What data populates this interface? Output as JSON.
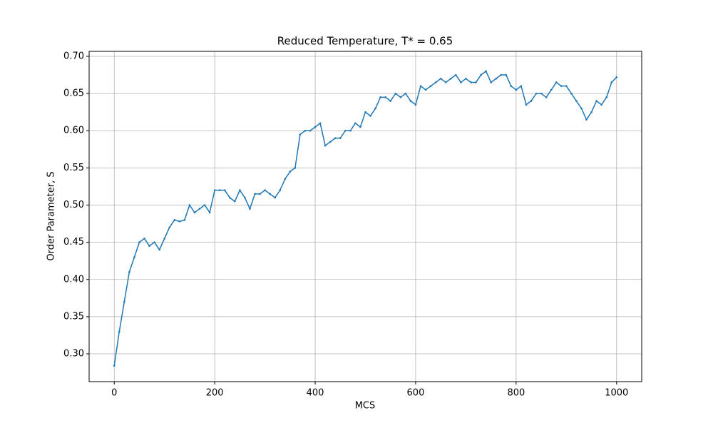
{
  "chart_data": {
    "type": "line",
    "title": "Reduced Temperature, T* = 0.65",
    "xlabel": "MCS",
    "ylabel": "Order Parameter, S",
    "x": [
      0,
      10,
      20,
      30,
      40,
      50,
      60,
      70,
      80,
      90,
      100,
      110,
      120,
      130,
      140,
      150,
      160,
      170,
      180,
      190,
      200,
      210,
      220,
      230,
      240,
      250,
      260,
      270,
      280,
      290,
      300,
      310,
      320,
      330,
      340,
      350,
      360,
      370,
      380,
      390,
      400,
      410,
      420,
      430,
      440,
      450,
      460,
      470,
      480,
      490,
      500,
      510,
      520,
      530,
      540,
      550,
      560,
      570,
      580,
      590,
      600,
      610,
      620,
      630,
      640,
      650,
      660,
      670,
      680,
      690,
      700,
      710,
      720,
      730,
      740,
      750,
      760,
      770,
      780,
      790,
      800,
      810,
      820,
      830,
      840,
      850,
      860,
      870,
      880,
      890,
      900,
      910,
      920,
      930,
      940,
      950,
      960,
      970,
      980,
      990,
      1000
    ],
    "series": [
      {
        "color": "#1f77b4",
        "values": [
          0.284,
          0.33,
          0.37,
          0.41,
          0.43,
          0.45,
          0.455,
          0.445,
          0.45,
          0.44,
          0.455,
          0.47,
          0.48,
          0.478,
          0.48,
          0.5,
          0.49,
          0.495,
          0.5,
          0.49,
          0.52,
          0.52,
          0.52,
          0.51,
          0.505,
          0.52,
          0.51,
          0.495,
          0.515,
          0.515,
          0.52,
          0.515,
          0.51,
          0.52,
          0.535,
          0.545,
          0.55,
          0.595,
          0.6,
          0.6,
          0.605,
          0.61,
          0.58,
          0.585,
          0.59,
          0.59,
          0.6,
          0.6,
          0.61,
          0.605,
          0.625,
          0.62,
          0.63,
          0.645,
          0.645,
          0.64,
          0.65,
          0.645,
          0.65,
          0.64,
          0.635,
          0.66,
          0.655,
          0.66,
          0.665,
          0.67,
          0.665,
          0.67,
          0.675,
          0.665,
          0.67,
          0.665,
          0.665,
          0.675,
          0.68,
          0.665,
          0.67,
          0.675,
          0.675,
          0.66,
          0.655,
          0.66,
          0.635,
          0.64,
          0.65,
          0.65,
          0.645,
          0.655,
          0.665,
          0.66,
          0.66,
          0.65,
          0.64,
          0.63,
          0.615,
          0.625,
          0.64,
          0.635,
          0.645,
          0.665,
          0.672
        ]
      }
    ],
    "xlim": [
      -50,
      1050
    ],
    "ylim": [
      0.2626,
      0.7067
    ],
    "xticks": [
      0,
      200,
      400,
      600,
      800,
      1000
    ],
    "yticks": [
      {
        "value": 0.3,
        "label": "0.30"
      },
      {
        "value": 0.35,
        "label": "0.35"
      },
      {
        "value": 0.4,
        "label": "0.40"
      },
      {
        "value": 0.45,
        "label": "0.45"
      },
      {
        "value": 0.5,
        "label": "0.50"
      },
      {
        "value": 0.55,
        "label": "0.55"
      },
      {
        "value": 0.6,
        "label": "0.60"
      },
      {
        "value": 0.65,
        "label": "0.65"
      },
      {
        "value": 0.7,
        "label": "0.70"
      }
    ],
    "grid": true
  }
}
